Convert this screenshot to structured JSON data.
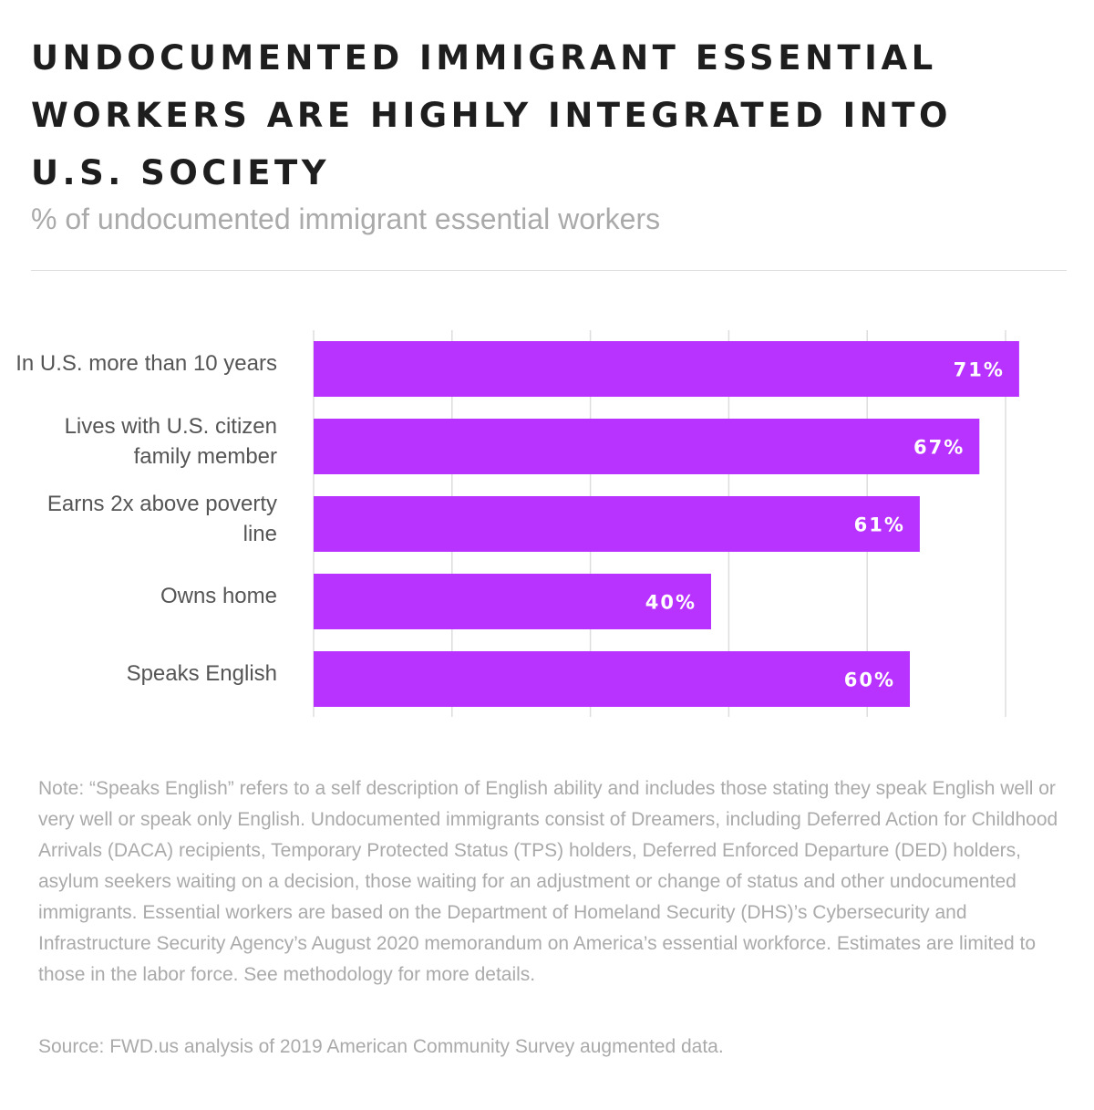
{
  "title": "UNDOCUMENTED IMMIGRANT ESSENTIAL WORKERS ARE HIGHLY INTEGRATED INTO U.S. SOCIETY",
  "subtitle": "% of undocumented immigrant essential workers",
  "note": "Note: “Speaks English” refers to a self description of English ability and includes those stating they speak English well or very well or speak only English. Undocumented immigrants consist of Dreamers, including Deferred Action for Childhood Arrivals (DACA) recipients, Temporary Protected Status (TPS) holders, Deferred Enforced Departure (DED) holders, asylum seekers waiting on a decision, those waiting for an adjustment  or change of status  and other undocumented immigrants. Essential workers are based on the Department of Homeland Security (DHS)’s Cybersecurity and Infrastructure Security Agency’s August 2020 memorandum on America’s essential workforce. Estimates are  limited to those in the labor force. See methodology for more details.",
  "source": "Source: FWD.us analysis of 2019 American Community Survey augmented data.",
  "chart_data": {
    "type": "bar",
    "orientation": "horizontal",
    "categories": [
      "In U.S. more than 10 years",
      "Lives with U.S. citizen family member",
      "Earns 2x above poverty line",
      "Owns home",
      "Speaks English"
    ],
    "values": [
      71,
      67,
      61,
      40,
      60
    ],
    "data_labels": [
      "71%",
      "67%",
      "61%",
      "40%",
      "60%"
    ],
    "title": "UNDOCUMENTED IMMIGRANT ESSENTIAL WORKERS ARE HIGHLY INTEGRATED INTO U.S. SOCIETY",
    "subtitle": "% of undocumented immigrant essential workers",
    "xlabel": "",
    "ylabel": "",
    "grid": true,
    "legend": "none",
    "bar_color": "#b833ff",
    "label_color": "#ffffff"
  }
}
